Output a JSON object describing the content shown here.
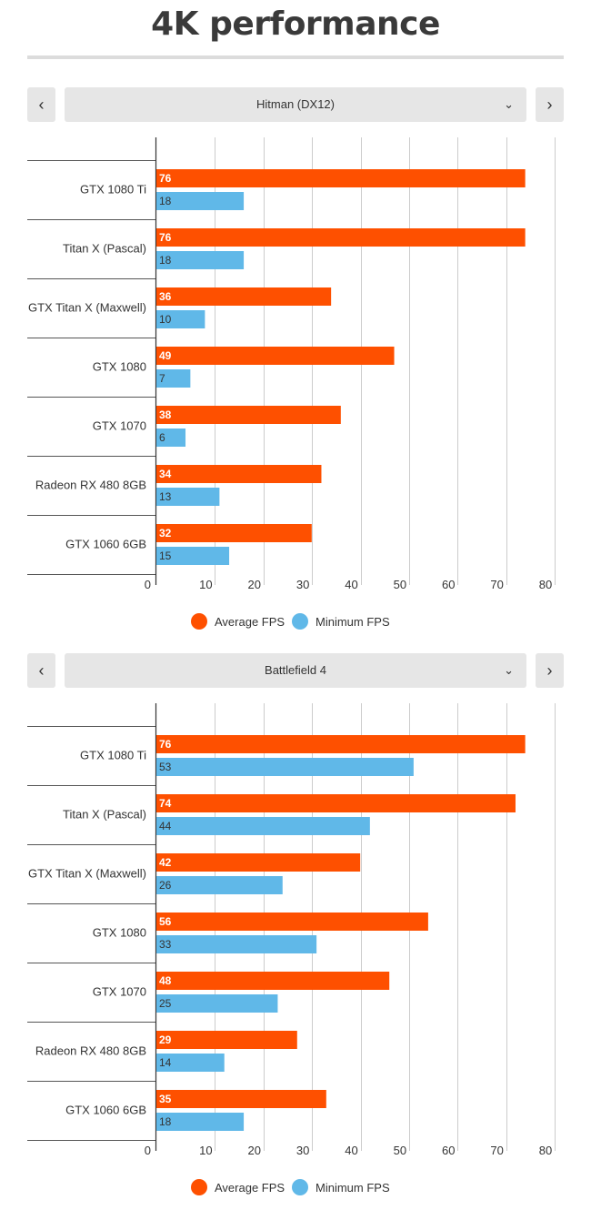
{
  "page": {
    "title": "4K performance"
  },
  "colors": {
    "average": "#fe5000",
    "minimum": "#60b8e8"
  },
  "nav": {
    "prev_icon": "chevron-left-icon",
    "next_icon": "chevron-right-icon",
    "dropdown_icon": "chevron-down-icon"
  },
  "chart_data": [
    {
      "type": "bar",
      "orientation": "horizontal",
      "title": "Hitman (DX12)",
      "categories": [
        "GTX 1080 Ti",
        "Titan X (Pascal)",
        "GTX Titan X (Maxwell)",
        "GTX 1080",
        "GTX 1070",
        "Radeon RX 480 8GB",
        "GTX 1060 6GB"
      ],
      "series": [
        {
          "name": "Average FPS",
          "values": [
            76,
            76,
            36,
            49,
            38,
            34,
            32
          ]
        },
        {
          "name": "Minimum FPS",
          "values": [
            18,
            18,
            10,
            7,
            6,
            13,
            15
          ]
        }
      ],
      "xlim": [
        0,
        80
      ],
      "xticks": [
        0,
        10,
        20,
        30,
        40,
        50,
        60,
        70,
        80
      ],
      "grid": true,
      "legend": "bottom"
    },
    {
      "type": "bar",
      "orientation": "horizontal",
      "title": "Battlefield 4",
      "categories": [
        "GTX 1080 Ti",
        "Titan X (Pascal)",
        "GTX Titan X (Maxwell)",
        "GTX 1080",
        "GTX 1070",
        "Radeon RX 480 8GB",
        "GTX 1060 6GB"
      ],
      "series": [
        {
          "name": "Average FPS",
          "values": [
            76,
            74,
            42,
            56,
            48,
            29,
            35
          ]
        },
        {
          "name": "Minimum FPS",
          "values": [
            53,
            44,
            26,
            33,
            25,
            14,
            18
          ]
        }
      ],
      "xlim": [
        0,
        80
      ],
      "xticks": [
        0,
        10,
        20,
        30,
        40,
        50,
        60,
        70,
        80
      ],
      "grid": true,
      "legend": "bottom"
    }
  ]
}
